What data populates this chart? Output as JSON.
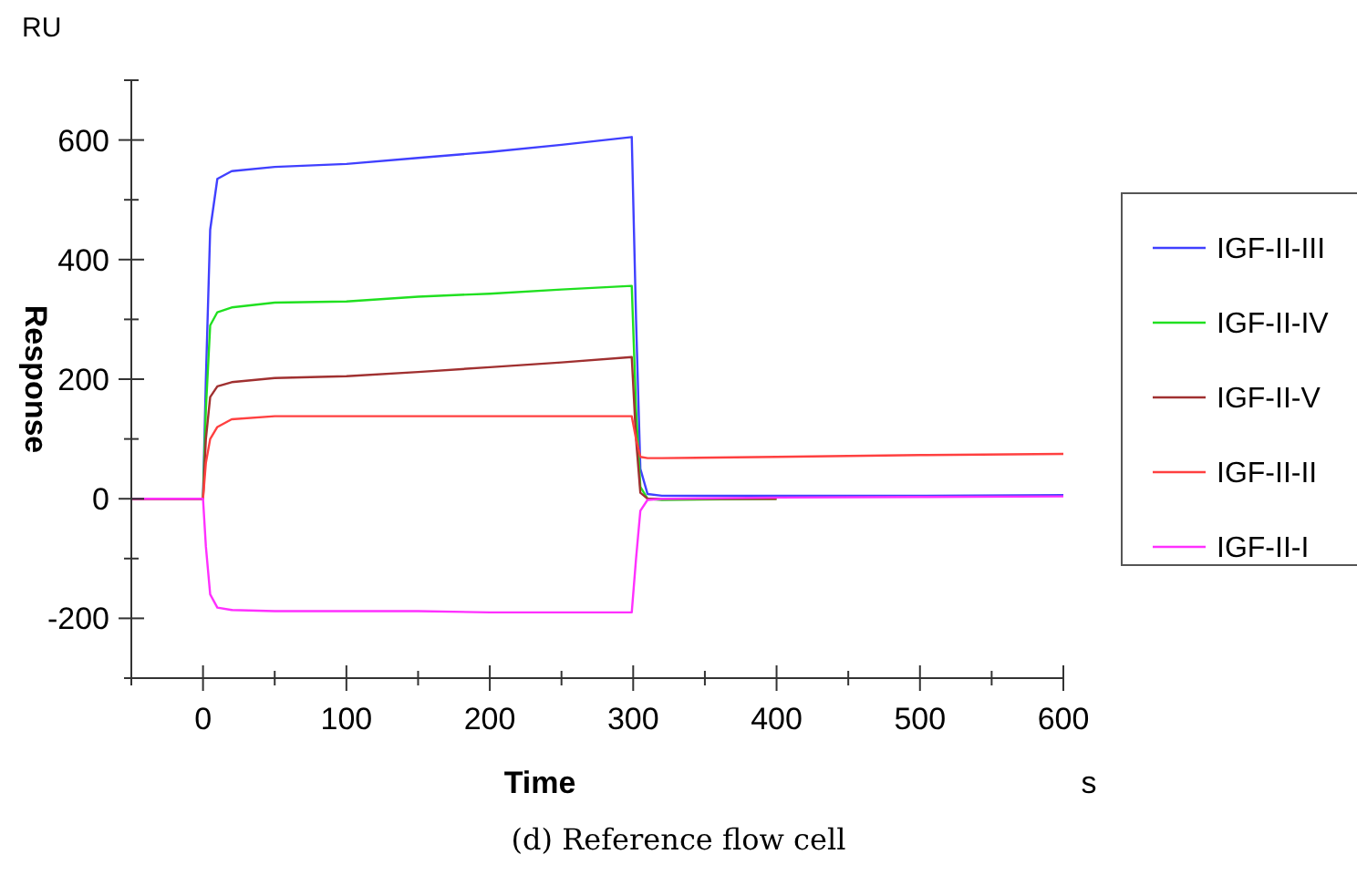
{
  "chart_data": {
    "type": "line",
    "title": "(d) Reference flow cell",
    "xlabel": "Time",
    "ylabel": "Response",
    "annotations": [
      "RU",
      "s"
    ],
    "xlim": [
      -50,
      600
    ],
    "xticks": [
      {
        "value": -50,
        "label": null
      },
      0,
      {
        "value": 50,
        "label": null
      },
      100,
      {
        "value": 150,
        "label": null
      },
      200,
      {
        "value": 250,
        "label": null
      },
      300,
      {
        "value": 350,
        "label": null
      },
      400,
      {
        "value": 450,
        "label": null
      },
      500,
      {
        "value": 550,
        "label": null
      },
      600
    ],
    "ylim": [
      -300,
      700
    ],
    "yticks": [
      {
        "value": -300,
        "label": null
      },
      -200,
      {
        "value": -100,
        "label": null
      },
      0,
      {
        "value": 100,
        "label": null
      },
      200,
      {
        "value": 300,
        "label": null
      },
      400,
      {
        "value": 500,
        "label": null
      },
      600,
      {
        "value": 700,
        "label": null
      }
    ],
    "grid": false,
    "legend": "right",
    "marker": "none",
    "line_style": "solid",
    "x": [
      -50,
      0,
      2,
      5,
      10,
      20,
      50,
      100,
      150,
      200,
      250,
      299,
      302,
      305,
      310,
      320,
      400,
      500,
      600
    ],
    "series": [
      {
        "name": "IGF-II-III",
        "color": "#4040ff",
        "values": [
          0,
          0,
          200,
          450,
          535,
          548,
          555,
          560,
          570,
          580,
          592,
          605,
          300,
          50,
          8,
          5,
          5,
          5,
          6
        ]
      },
      {
        "name": "IGF-II-IV",
        "color": "#20e020",
        "values": [
          0,
          0,
          150,
          290,
          312,
          320,
          328,
          330,
          338,
          343,
          350,
          356,
          150,
          20,
          0,
          -2,
          0,
          null,
          null
        ]
      },
      {
        "name": "IGF-II-V",
        "color": "#a03030",
        "values": [
          0,
          0,
          100,
          170,
          188,
          195,
          202,
          205,
          212,
          220,
          228,
          237,
          100,
          10,
          0,
          0,
          0,
          null,
          null
        ]
      },
      {
        "name": "IGF-II-II",
        "color": "#ff4040",
        "values": [
          0,
          0,
          60,
          100,
          120,
          133,
          138,
          138,
          138,
          138,
          138,
          138,
          100,
          70,
          68,
          68,
          70,
          73,
          75
        ]
      },
      {
        "name": "IGF-II-I",
        "color": "#ff30ff",
        "values": [
          0,
          0,
          -80,
          -160,
          -182,
          -186,
          -188,
          -188,
          -188,
          -190,
          -190,
          -190,
          -100,
          -20,
          -2,
          0,
          2,
          3,
          4
        ]
      }
    ]
  }
}
